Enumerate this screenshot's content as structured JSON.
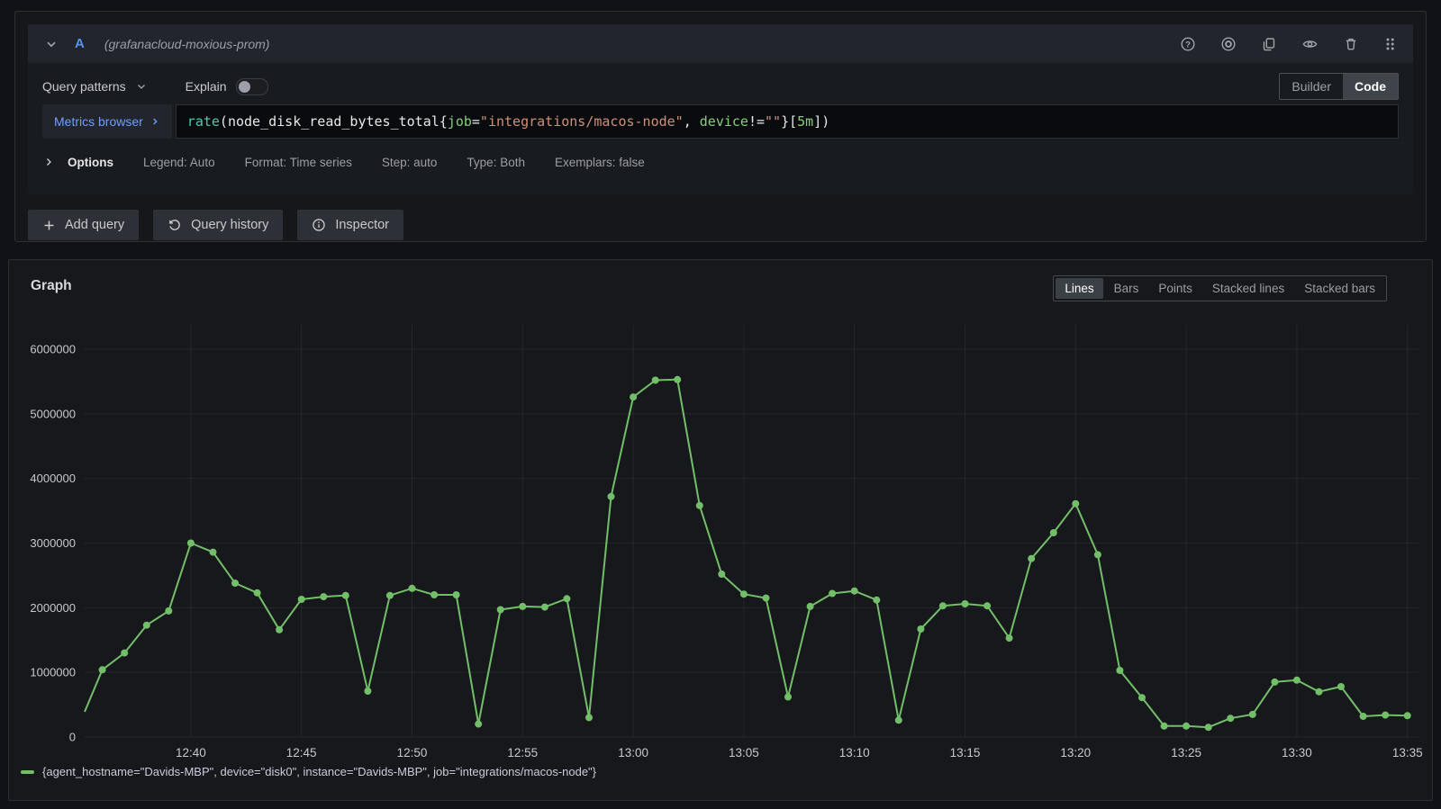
{
  "query_editor": {
    "ref_id": "A",
    "datasource_name": "(grafanacloud-moxious-prom)",
    "toolbar_icons": [
      "help-icon",
      "record-icon",
      "copy-icon",
      "eye-icon",
      "trash-icon",
      "drag-handle-icon"
    ],
    "query_patterns_label": "Query patterns",
    "explain_label": "Explain",
    "explain_enabled": false,
    "editor_mode": {
      "options": [
        "Builder",
        "Code"
      ],
      "active": "Code"
    },
    "metrics_browser_label": "Metrics browser",
    "query_tokens": [
      {
        "type": "function",
        "text": "rate"
      },
      {
        "type": "plain",
        "text": "(node_disk_read_bytes_total{"
      },
      {
        "type": "label",
        "text": "job"
      },
      {
        "type": "plain",
        "text": "="
      },
      {
        "type": "string",
        "text": "\"integrations/macos-node\""
      },
      {
        "type": "plain",
        "text": ", "
      },
      {
        "type": "label",
        "text": "device"
      },
      {
        "type": "plain",
        "text": "!="
      },
      {
        "type": "string",
        "text": "\"\""
      },
      {
        "type": "plain",
        "text": "}["
      },
      {
        "type": "duration",
        "text": "5m"
      },
      {
        "type": "plain",
        "text": "])"
      }
    ],
    "options_row": {
      "label": "Options",
      "summary": [
        "Legend: Auto",
        "Format: Time series",
        "Step: auto",
        "Type: Both",
        "Exemplars: false"
      ]
    },
    "actions": {
      "add_query": "Add query",
      "query_history": "Query history",
      "inspector": "Inspector"
    }
  },
  "graph_panel": {
    "title": "Graph",
    "modes": [
      "Lines",
      "Bars",
      "Points",
      "Stacked lines",
      "Stacked bars"
    ],
    "active_mode": "Lines",
    "legend": {
      "color": "#73BF69",
      "label": "{agent_hostname=\"Davids-MBP\", device=\"disk0\", instance=\"Davids-MBP\", job=\"integrations/macos-node\"}"
    }
  },
  "chart_data": {
    "type": "line",
    "title": "Graph",
    "series_name": "{agent_hostname=\"Davids-MBP\", device=\"disk0\", instance=\"Davids-MBP\", job=\"integrations/macos-node\"}",
    "series_color": "#73BF69",
    "grid": true,
    "legend_position": "bottom",
    "xlabel": "",
    "ylabel": "",
    "x_ticks": [
      "12:40",
      "12:45",
      "12:50",
      "12:55",
      "13:00",
      "13:05",
      "13:10",
      "13:15",
      "13:20",
      "13:25",
      "13:30",
      "13:35"
    ],
    "y_ticks": [
      0,
      1000000,
      2000000,
      3000000,
      4000000,
      5000000,
      6000000
    ],
    "ylim": [
      0,
      6400000
    ],
    "x_domain_minutes": [
      755.2,
      815.5
    ],
    "points": [
      [
        755.2,
        390000
      ],
      [
        756,
        1040000
      ],
      [
        757,
        1300000
      ],
      [
        758,
        1730000
      ],
      [
        759,
        1950000
      ],
      [
        760,
        3000000
      ],
      [
        761,
        2860000
      ],
      [
        762,
        2380000
      ],
      [
        763,
        2230000
      ],
      [
        764,
        1660000
      ],
      [
        765,
        2130000
      ],
      [
        766,
        2170000
      ],
      [
        767,
        2190000
      ],
      [
        768,
        710000
      ],
      [
        769,
        2190000
      ],
      [
        770,
        2300000
      ],
      [
        771,
        2200000
      ],
      [
        772,
        2200000
      ],
      [
        773,
        200000
      ],
      [
        774,
        1970000
      ],
      [
        775,
        2020000
      ],
      [
        776,
        2010000
      ],
      [
        777,
        2140000
      ],
      [
        778,
        300000
      ],
      [
        779,
        3720000
      ],
      [
        780,
        5260000
      ],
      [
        781,
        5520000
      ],
      [
        782,
        5530000
      ],
      [
        783,
        3580000
      ],
      [
        784,
        2520000
      ],
      [
        785,
        2210000
      ],
      [
        786,
        2150000
      ],
      [
        787,
        620000
      ],
      [
        788,
        2020000
      ],
      [
        789,
        2220000
      ],
      [
        790,
        2260000
      ],
      [
        791,
        2120000
      ],
      [
        792,
        260000
      ],
      [
        793,
        1670000
      ],
      [
        794,
        2030000
      ],
      [
        795,
        2060000
      ],
      [
        796,
        2030000
      ],
      [
        797,
        1530000
      ],
      [
        798,
        2760000
      ],
      [
        799,
        3160000
      ],
      [
        800,
        3610000
      ],
      [
        801,
        2820000
      ],
      [
        802,
        1030000
      ],
      [
        803,
        610000
      ],
      [
        804,
        170000
      ],
      [
        805,
        170000
      ],
      [
        806,
        150000
      ],
      [
        807,
        290000
      ],
      [
        808,
        350000
      ],
      [
        809,
        850000
      ],
      [
        810,
        880000
      ],
      [
        811,
        700000
      ],
      [
        812,
        780000
      ],
      [
        813,
        320000
      ],
      [
        814,
        340000
      ],
      [
        815,
        330000
      ]
    ]
  }
}
